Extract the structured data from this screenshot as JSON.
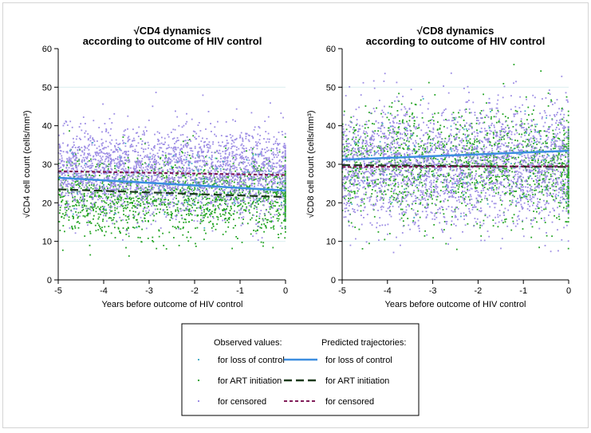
{
  "chart_data": [
    {
      "type": "scatter",
      "title": "√CD4 dynamics",
      "subtitle": "according to outcome of HIV control",
      "xlabel": "Years before outcome of HIV control",
      "ylabel": "√CD4 cell count (cells/mm³)",
      "xlim": [
        -5,
        0
      ],
      "ylim": [
        0,
        60
      ],
      "xticks": [
        -5,
        -4,
        -3,
        -2,
        -1,
        0
      ],
      "xtick_labels": [
        "-5",
        "-4",
        "-3",
        "-2",
        "-1",
        "0"
      ],
      "yticks": [
        0,
        10,
        20,
        30,
        40,
        50,
        60
      ],
      "ytick_labels": [
        "0",
        "10",
        "20",
        "30",
        "40",
        "50",
        "60"
      ],
      "grid": "horizontal",
      "scatter_groups": [
        {
          "name": "for loss of control",
          "color": "#48b0c8",
          "n": 90,
          "mean": 25,
          "sd": 5
        },
        {
          "name": "for ART initiation",
          "color": "#24a424",
          "n": 1500,
          "mean": 21.5,
          "sd": 5
        },
        {
          "name": "for censored",
          "color": "#9c8ce4",
          "n": 2500,
          "mean": 28,
          "sd": 5.5
        }
      ],
      "trajectories": [
        {
          "name": "for loss of control",
          "color": "#3c8ee0",
          "style": "solid",
          "x": [
            -5,
            0
          ],
          "y": [
            26.5,
            23.2
          ]
        },
        {
          "name": "for ART initiation",
          "color": "#1c3a1c",
          "style": "dash",
          "x": [
            -5,
            0
          ],
          "y": [
            23.5,
            21.5
          ]
        },
        {
          "name": "for censored",
          "color": "#801c58",
          "style": "dot",
          "x": [
            -5,
            0
          ],
          "y": [
            28.2,
            27.2
          ]
        }
      ]
    },
    {
      "type": "scatter",
      "title": "√CD8 dynamics",
      "subtitle": "according to outcome of HIV control",
      "xlabel": "Years before outcome of HIV control",
      "ylabel": "√CD8 cell count (cells/mm³)",
      "xlim": [
        -5,
        0
      ],
      "ylim": [
        0,
        60
      ],
      "xticks": [
        -5,
        -4,
        -3,
        -2,
        -1,
        0
      ],
      "xtick_labels": [
        "-5",
        "-4",
        "-3",
        "-2",
        "-1",
        "0"
      ],
      "yticks": [
        0,
        10,
        20,
        30,
        40,
        50,
        60
      ],
      "ytick_labels": [
        "0",
        "10",
        "20",
        "30",
        "40",
        "50",
        "60"
      ],
      "grid": "horizontal",
      "scatter_groups": [
        {
          "name": "for loss of control",
          "color": "#48b0c8",
          "n": 90,
          "mean": 31,
          "sd": 7
        },
        {
          "name": "for ART initiation",
          "color": "#24a424",
          "n": 1500,
          "mean": 29.5,
          "sd": 7
        },
        {
          "name": "for censored",
          "color": "#9c8ce4",
          "n": 2500,
          "mean": 29.5,
          "sd": 8
        }
      ],
      "trajectories": [
        {
          "name": "for loss of control",
          "color": "#3c8ee0",
          "style": "solid",
          "x": [
            -5,
            0
          ],
          "y": [
            31.2,
            33.5
          ]
        },
        {
          "name": "for ART initiation",
          "color": "#1c3a1c",
          "style": "dash",
          "x": [
            -5,
            0
          ],
          "y": [
            29.8,
            29.3
          ]
        },
        {
          "name": "for censored",
          "color": "#801c58",
          "style": "dot",
          "x": [
            -5,
            0
          ],
          "y": [
            29.3,
            29.5
          ]
        }
      ]
    }
  ],
  "legend": {
    "observed_header": "Observed values:",
    "predicted_header": "Predicted trajectories:",
    "observed": [
      {
        "label": "for loss of control",
        "color": "#48b0c8"
      },
      {
        "label": "for ART initiation",
        "color": "#24a424"
      },
      {
        "label": "for censored",
        "color": "#9c8ce4"
      }
    ],
    "predicted": [
      {
        "label": "for loss of control",
        "color": "#3c8ee0",
        "style": "solid"
      },
      {
        "label": "for ART initiation",
        "color": "#1c3a1c",
        "style": "dash"
      },
      {
        "label": "for censored",
        "color": "#801c58",
        "style": "dot"
      }
    ]
  }
}
